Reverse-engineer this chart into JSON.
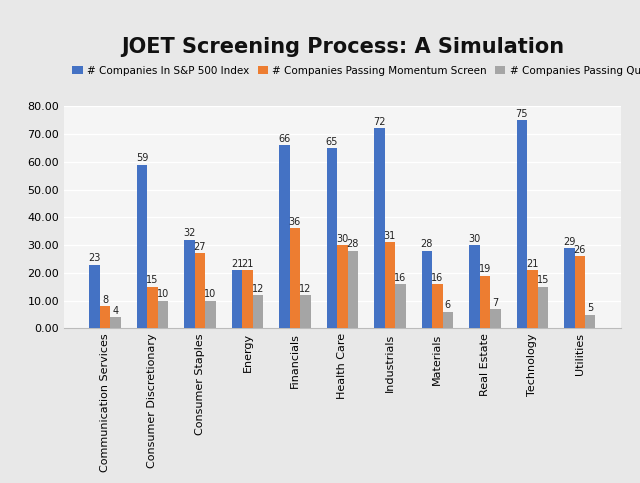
{
  "title": "JOET Screening Process: A Simulation",
  "categories": [
    "Communication Services",
    "Consumer Discretionary",
    "Consumer Staples",
    "Energy",
    "Financials",
    "Health Care",
    "Industrials",
    "Materials",
    "Real Estate",
    "Technology",
    "Utilities"
  ],
  "series": [
    {
      "label": "# Companies In S&P 500 Index",
      "color": "#4472C4",
      "values": [
        23,
        59,
        32,
        21,
        66,
        65,
        72,
        28,
        30,
        75,
        29
      ]
    },
    {
      "label": "# Companies Passing Momentum Screen",
      "color": "#ED7D31",
      "values": [
        8,
        15,
        27,
        21,
        36,
        30,
        31,
        16,
        19,
        21,
        26
      ]
    },
    {
      "label": "# Companies Passing Quality Screen",
      "color": "#A5A5A5",
      "values": [
        4,
        10,
        10,
        12,
        12,
        28,
        16,
        6,
        7,
        15,
        5
      ]
    }
  ],
  "ylim": [
    0,
    80
  ],
  "yticks": [
    0,
    10,
    20,
    30,
    40,
    50,
    60,
    70,
    80
  ],
  "ytick_labels": [
    "0.00",
    "10.00",
    "20.00",
    "30.00",
    "40.00",
    "50.00",
    "60.00",
    "70.00",
    "80.00"
  ],
  "outer_bg": "#E8E8E8",
  "plot_bg": "#F5F5F5",
  "grid_color": "#FFFFFF",
  "bar_width": 0.22,
  "title_fontsize": 15,
  "label_fontsize": 7,
  "tick_fontsize": 8,
  "legend_fontsize": 7.5
}
